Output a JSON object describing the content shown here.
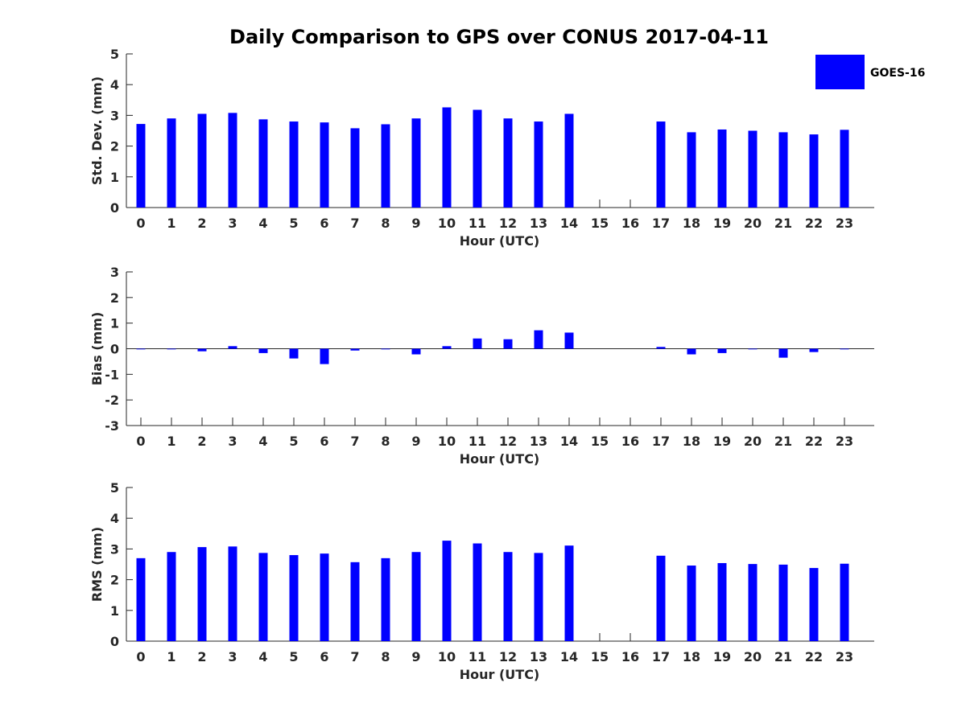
{
  "title": "Daily Comparison to GPS over CONUS 2017-04-11",
  "legend": {
    "label": "GOES-16",
    "position": "top-right"
  },
  "colors": {
    "bar": "#0000ff",
    "axis": "#262626"
  },
  "chart_data": [
    {
      "type": "bar",
      "ylabel": "Std. Dev. (mm)",
      "xlabel": "Hour (UTC)",
      "ylim": [
        0,
        5
      ],
      "yticks": [
        0,
        1,
        2,
        3,
        4,
        5
      ],
      "categories": [
        "0",
        "1",
        "2",
        "3",
        "4",
        "5",
        "6",
        "7",
        "8",
        "9",
        "10",
        "11",
        "12",
        "13",
        "14",
        "15",
        "16",
        "17",
        "18",
        "19",
        "20",
        "21",
        "22",
        "23"
      ],
      "series": [
        {
          "name": "GOES-16",
          "values": [
            2.72,
            2.9,
            3.05,
            3.08,
            2.87,
            2.8,
            2.77,
            2.58,
            2.71,
            2.9,
            3.26,
            3.18,
            2.9,
            2.8,
            3.05,
            null,
            null,
            2.8,
            2.45,
            2.54,
            2.5,
            2.45,
            2.38,
            2.53
          ]
        }
      ]
    },
    {
      "type": "bar",
      "ylabel": "Bias (mm)",
      "xlabel": "Hour (UTC)",
      "ylim": [
        -3,
        3
      ],
      "yticks": [
        -3,
        -2,
        -1,
        0,
        1,
        2,
        3
      ],
      "categories": [
        "0",
        "1",
        "2",
        "3",
        "4",
        "5",
        "6",
        "7",
        "8",
        "9",
        "10",
        "11",
        "12",
        "13",
        "14",
        "15",
        "16",
        "17",
        "18",
        "19",
        "20",
        "21",
        "22",
        "23"
      ],
      "series": [
        {
          "name": "GOES-16",
          "values": [
            -0.02,
            -0.02,
            -0.1,
            0.1,
            -0.17,
            -0.38,
            -0.6,
            -0.07,
            -0.02,
            -0.22,
            0.1,
            0.4,
            0.37,
            0.72,
            0.63,
            null,
            null,
            0.07,
            -0.22,
            -0.17,
            -0.02,
            -0.35,
            -0.13,
            -0.02
          ]
        }
      ]
    },
    {
      "type": "bar",
      "ylabel": "RMS (mm)",
      "xlabel": "Hour (UTC)",
      "ylim": [
        0,
        5
      ],
      "yticks": [
        0,
        1,
        2,
        3,
        4,
        5
      ],
      "categories": [
        "0",
        "1",
        "2",
        "3",
        "4",
        "5",
        "6",
        "7",
        "8",
        "9",
        "10",
        "11",
        "12",
        "13",
        "14",
        "15",
        "16",
        "17",
        "18",
        "19",
        "20",
        "21",
        "22",
        "23"
      ],
      "series": [
        {
          "name": "GOES-16",
          "values": [
            2.7,
            2.9,
            3.06,
            3.08,
            2.87,
            2.8,
            2.85,
            2.57,
            2.7,
            2.9,
            3.27,
            3.18,
            2.9,
            2.87,
            3.11,
            null,
            null,
            2.78,
            2.46,
            2.54,
            2.51,
            2.49,
            2.38,
            2.52
          ]
        }
      ]
    }
  ]
}
